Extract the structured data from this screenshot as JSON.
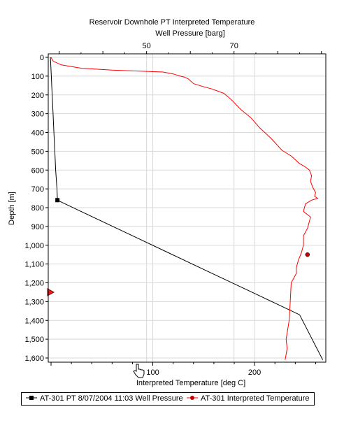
{
  "chart_data": {
    "type": "line",
    "title": "Reservoir Downhole PT    Interpreted Temperature",
    "top_axis_label": "Well Pressure [barg]",
    "xlabel": "Interpreted Temperature [deg C]",
    "ylabel": "Depth [m]",
    "y_reversed": true,
    "ylim": [
      0,
      1620
    ],
    "y_ticks": [
      "0",
      "100",
      "200",
      "300",
      "400",
      "500",
      "600",
      "700",
      "800",
      "900",
      "1,000",
      "1,100",
      "1,200",
      "1,300",
      "1,400",
      "1,500",
      "1,600"
    ],
    "x_bottom": {
      "lim": [
        0,
        270
      ],
      "ticks": [
        100,
        200
      ],
      "tick_labels": [
        "100",
        "200"
      ]
    },
    "x_top": {
      "lim": [
        27.5,
        91
      ],
      "ticks": [
        50,
        70
      ],
      "tick_labels": [
        "50",
        "70"
      ]
    },
    "grid": true,
    "series": [
      {
        "name": "AT-301 PT 8/07/2004 11:03 Well Pressure",
        "axis": "top",
        "color": "#000000",
        "marker": "square",
        "x": [
          28.0,
          28.2,
          28.4,
          28.6,
          28.8,
          29.0,
          29.2,
          29.5,
          29.6,
          35,
          45,
          55,
          65,
          75,
          85,
          90.3
        ],
        "y": [
          0,
          100,
          200,
          300,
          400,
          500,
          600,
          700,
          760,
          820,
          930,
          1040,
          1150,
          1260,
          1370,
          1610
        ],
        "marked_points": [
          [
            29.6,
            760
          ]
        ]
      },
      {
        "name": "AT-301 Interpreted Temperature",
        "axis": "bottom",
        "color": "#ff0000",
        "marker": "circle",
        "x": [
          0,
          2,
          10,
          30,
          60,
          110,
          120,
          127,
          131,
          135,
          137,
          140,
          149,
          158,
          170,
          178,
          186,
          197,
          205,
          216,
          227,
          236,
          244,
          249,
          254,
          256,
          255,
          257,
          258,
          260,
          259,
          262,
          256,
          250,
          248,
          255,
          252,
          248,
          248,
          246,
          243,
          241,
          241,
          236,
          235,
          234,
          231,
          232,
          230
        ],
        "y": [
          0,
          20,
          40,
          58,
          68,
          78,
          88,
          100,
          105,
          115,
          125,
          140,
          155,
          168,
          192,
          230,
          275,
          325,
          375,
          430,
          495,
          525,
          565,
          580,
          600,
          630,
          660,
          690,
          700,
          720,
          740,
          750,
          760,
          780,
          820,
          850,
          910,
          950,
          1000,
          1040,
          1080,
          1120,
          1150,
          1200,
          1300,
          1400,
          1500,
          1550,
          1610
        ],
        "marked_points": [
          [
            252,
            1050
          ]
        ]
      }
    ],
    "annotations": [
      {
        "type": "red-triangle-marker",
        "depth": 1250
      }
    ],
    "legend": {
      "placement": "bottom"
    }
  }
}
